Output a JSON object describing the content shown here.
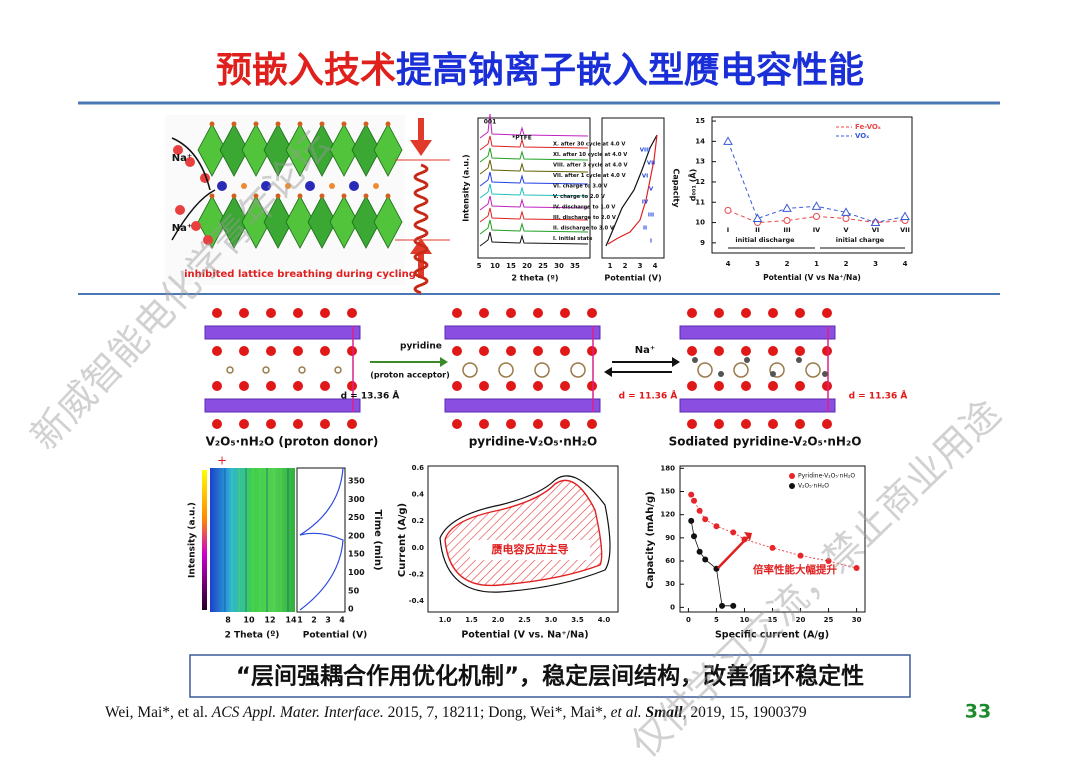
{
  "header": {
    "title_red": "预嵌入技术",
    "title_blue": "提高钠离子嵌入型赝电容性能"
  },
  "watermark": [
    "新威智能电化学青年论坛",
    "仅供学习交流，禁止商业用途"
  ],
  "panel_lattice": {
    "ions": [
      "Na⁺",
      "Na⁺"
    ],
    "caption": "inhibited lattice breathing during cycling"
  },
  "panel_xrd": {
    "peaks": [
      "001",
      "*PTFE"
    ],
    "states": [
      "X. after 30 cycle at 4.0 V",
      "XI. after 10 cycle at 4.0 V",
      "VIII. after 3 cycle at 4.0 V",
      "VII. after 1 cycle at 4.0 V",
      "VI. charge to 3.0 V",
      "V. charge to 2.0 V",
      "IV. discharge to 1.0 V",
      "III. discharge to 2.0 V",
      "II. discharge to 3.0 V",
      "I. initial state"
    ],
    "y_label": "Intensity (a.u.)",
    "x_label": "2 theta (º)",
    "x_ticks": [
      "5",
      "10",
      "15",
      "20",
      "25",
      "30",
      "35"
    ],
    "cap_label": "Capacity",
    "cap_x_label": "Potential (V)",
    "cap_x_ticks": [
      "1",
      "2",
      "3",
      "4"
    ],
    "numerals": [
      "VIII",
      "VII",
      "VI",
      "V",
      "IV",
      "III",
      "II",
      "I"
    ]
  },
  "panel_d001": {
    "categories": [
      "I",
      "II",
      "III",
      "IV",
      "V",
      "VI",
      "VII"
    ],
    "series": [
      {
        "name": "Fe-VOₓ",
        "color": "#e8474a",
        "values": [
          10.6,
          10.0,
          10.1,
          10.3,
          10.2,
          10.0,
          10.1
        ]
      },
      {
        "name": "VOₓ",
        "color": "#3b5bd8",
        "values": [
          14.0,
          10.2,
          10.7,
          10.8,
          10.5,
          10.0,
          10.3
        ]
      }
    ],
    "ylim": [
      8.5,
      15.2
    ],
    "yticks": [
      9,
      10,
      11,
      12,
      13,
      14,
      15
    ],
    "y_label": "d₀₀₁ (Å)",
    "phases": [
      "initial discharge",
      "initial charge"
    ],
    "x_ticks": [
      "4",
      "3",
      "2",
      "1",
      "2",
      "3",
      "4"
    ],
    "x_label": "Potential (V vs Na⁺/Na)"
  },
  "panel_structures": {
    "guest": "pyridine",
    "guest_role": "(proton acceptor)",
    "ion": "Na⁺",
    "spacings": [
      "d = 13.36 Å",
      "d = 11.36 Å",
      "d = 11.36 Å"
    ],
    "captions": [
      "V₂O₅·nH₂O (proton donor)",
      "pyridine-V₂O₅·nH₂O",
      "Sodiated pyridine-V₂O₅·nH₂O"
    ]
  },
  "panel_insitu": {
    "y_label": "Intensity (a.u.)",
    "x_label": "2 Theta (º)",
    "x_ticks": [
      "8",
      "10",
      "12",
      "14"
    ],
    "pot_x_label": "Potential (V)",
    "pot_x_ticks": [
      "1",
      "2",
      "3",
      "4"
    ],
    "time_label": "Time (min)",
    "time_ticks": [
      "350",
      "300",
      "250",
      "200",
      "150",
      "100",
      "50",
      "0"
    ]
  },
  "panel_cv": {
    "y_label": "Current (A/g)",
    "x_label": "Potential (V vs. Na⁺/Na)",
    "y_ticks": [
      "0.6",
      "0.4",
      "0.2",
      "0.0",
      "-0.2",
      "-0.4"
    ],
    "x_ticks": [
      "1.0",
      "1.5",
      "2.0",
      "2.5",
      "3.0",
      "3.5",
      "4.0"
    ],
    "annotation": "赝电容反应主导"
  },
  "panel_rate": {
    "type": "scatter",
    "y_label": "Capacity (mAh/g)",
    "x_label": "Specific current (A/g)",
    "xlim": [
      -1.5,
      31.5
    ],
    "xticks": [
      0,
      5,
      10,
      15,
      20,
      25,
      30
    ],
    "ylim": [
      -6,
      183
    ],
    "yticks": [
      0,
      30,
      60,
      90,
      120,
      150,
      180
    ],
    "series": [
      {
        "name": "Pyridine-V₂O₅·nH₂O",
        "color": "#e8262a",
        "x": [
          0.5,
          1,
          2,
          3,
          5,
          8,
          10,
          15,
          20,
          25,
          30
        ],
        "values": [
          146,
          138,
          125,
          114,
          105,
          97,
          88,
          77,
          67,
          60,
          51
        ]
      },
      {
        "name": "V₂O₅·nH₂O",
        "color": "#111111",
        "x": [
          0.5,
          1,
          2,
          3,
          5,
          6,
          8
        ],
        "values": [
          112,
          92,
          72,
          62,
          50,
          2,
          2
        ]
      }
    ],
    "annotation": "倍率性能大幅提升"
  },
  "caption": "“层间强耦合作用优化机制”，稳定层间结构，改善循环稳定性",
  "reference": {
    "authors1": "Wei, Mai*, et al. ",
    "journal1": "ACS Appl. Mater. Interface.",
    "details1": " 2015, 7, 18211; Dong, Wei*, Mai*, ",
    "etal": "et al.",
    "journal2": " Small",
    "details2": ", 2019, 15, 1900379"
  },
  "page_number": "33"
}
